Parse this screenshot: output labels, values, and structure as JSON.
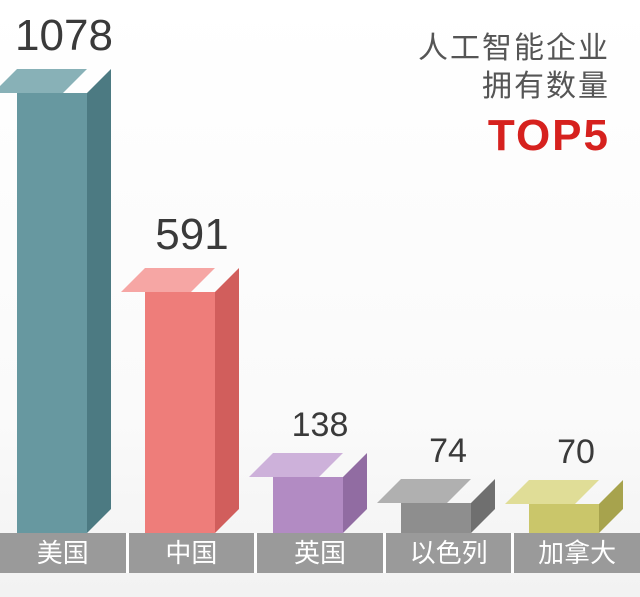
{
  "chart": {
    "type": "bar3d",
    "title_line1": "人工智能企业",
    "title_line2": "拥有数量",
    "title_highlight": "TOP5",
    "title_color": "#555555",
    "highlight_color": "#d6211e",
    "title_fontsize": 30,
    "highlight_fontsize": 44,
    "background_top": "#ffffff",
    "background_bottom": "#f2f2f2",
    "max_value": 1078,
    "bar_body_width": 70,
    "bar_depth": 24,
    "max_bar_height": 440,
    "value_fontsize_large": 44,
    "value_fontsize_small": 34,
    "axis_bg": "#9a9a9a",
    "axis_text_color": "#ffffff",
    "axis_fontsize": 26,
    "bars": [
      {
        "label": "美国",
        "value": 1078,
        "front": "#6798a0",
        "side": "#4c7a82",
        "top": "#88b1b7",
        "value_color": "#3a3a3a",
        "large_label": true
      },
      {
        "label": "中国",
        "value": 591,
        "front": "#ee7d7a",
        "side": "#d15e5c",
        "top": "#f6a6a4",
        "value_color": "#3a3a3a",
        "large_label": true
      },
      {
        "label": "英国",
        "value": 138,
        "front": "#b28bc3",
        "side": "#916ca2",
        "top": "#cdb1da",
        "value_color": "#3a3a3a",
        "large_label": false
      },
      {
        "label": "以色列",
        "value": 74,
        "front": "#8e8e8e",
        "side": "#6f6f6f",
        "top": "#b0b0b0",
        "value_color": "#3a3a3a",
        "large_label": false
      },
      {
        "label": "加拿大",
        "value": 70,
        "front": "#cac66a",
        "side": "#a7a34d",
        "top": "#e0dd97",
        "value_color": "#3a3a3a",
        "large_label": false
      }
    ]
  }
}
